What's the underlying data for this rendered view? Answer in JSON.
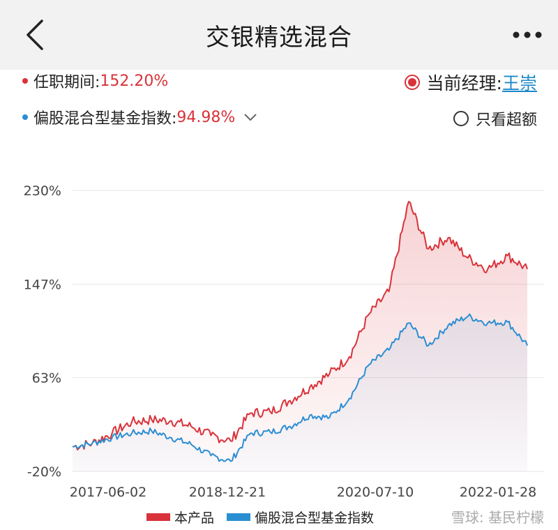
{
  "header": {
    "title": "交银精选混合",
    "back_icon": "chevron-left-icon",
    "more_icon": "more-dots-icon"
  },
  "stats": {
    "tenure_label": "任职期间:",
    "tenure_value": "152.20%",
    "index_label": "偏股混合型基金指数:",
    "index_value": "94.98%",
    "manager_label": "当前经理: ",
    "manager_name": "王崇",
    "excess_label": "只看超额"
  },
  "watermark": "雪球: 基民柠檬",
  "colors": {
    "product": "#d9323a",
    "index": "#2b8ed3"
  },
  "chart_data": {
    "type": "line",
    "y_ticks": [
      "230%",
      "147%",
      "63%",
      "-20%"
    ],
    "ylim": [
      -20,
      230
    ],
    "x_ticks": [
      "2017-06-02",
      "2018-12-21",
      "2020-07-10",
      "2022-01-28"
    ],
    "x": [
      "2016-12",
      "2017-03",
      "2017-06",
      "2017-09",
      "2017-12",
      "2018-03",
      "2018-06",
      "2018-09",
      "2018-12",
      "2019-03",
      "2019-06",
      "2019-09",
      "2019-12",
      "2020-03",
      "2020-06",
      "2020-09",
      "2020-12",
      "2021-02",
      "2021-03",
      "2021-06",
      "2021-09",
      "2021-12",
      "2022-01",
      "2022-03"
    ],
    "series": [
      {
        "name": "本产品",
        "values": [
          2,
          5,
          14,
          24,
          26,
          25,
          20,
          12,
          7,
          32,
          33,
          43,
          55,
          67,
          82,
          120,
          140,
          220,
          178,
          188,
          170,
          160,
          172,
          160
        ]
      },
      {
        "name": "偏股混合型基金指数",
        "values": [
          2,
          5,
          10,
          14,
          16,
          10,
          4,
          -6,
          -11,
          14,
          15,
          20,
          30,
          28,
          45,
          75,
          88,
          112,
          92,
          110,
          118,
          112,
          113,
          92
        ]
      }
    ]
  }
}
